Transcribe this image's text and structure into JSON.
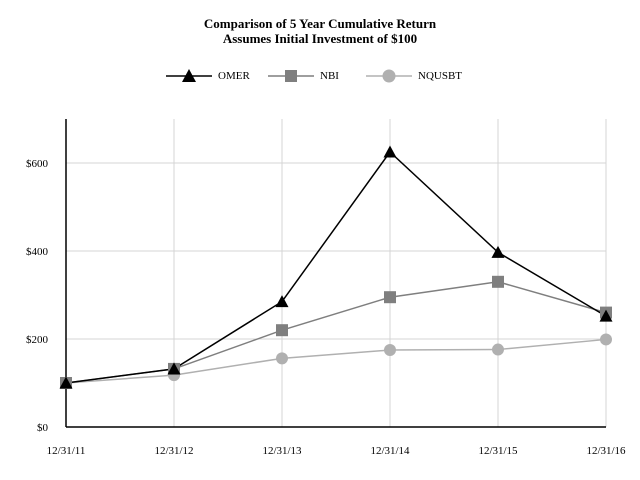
{
  "title": "Comparison of 5 Year Cumulative Return",
  "subtitle": "Assumes Initial Investment of $100",
  "chart_data": {
    "type": "line",
    "title": "Comparison of 5 Year Cumulative Return",
    "subtitle": "Assumes Initial Investment of $100",
    "categories": [
      "12/31/11",
      "12/31/12",
      "12/31/13",
      "12/31/14",
      "12/31/15",
      "12/31/16"
    ],
    "y_ticks": [
      "$0",
      "$200",
      "$400",
      "$600"
    ],
    "y_tick_values": [
      0,
      200,
      400,
      600
    ],
    "ylim": [
      0,
      700
    ],
    "grid": true,
    "legend_position": "top",
    "series": [
      {
        "name": "OMER",
        "values": [
          100,
          132,
          285,
          625,
          397,
          252
        ],
        "color": "#000000",
        "marker": "triangle"
      },
      {
        "name": "NBI",
        "values": [
          100,
          132,
          220,
          295,
          330,
          260
        ],
        "color": "#7f7f7f",
        "marker": "square"
      },
      {
        "name": "NQUSBT",
        "values": [
          100,
          118,
          156,
          175,
          176,
          199
        ],
        "color": "#b0b0b0",
        "marker": "circle"
      }
    ]
  }
}
